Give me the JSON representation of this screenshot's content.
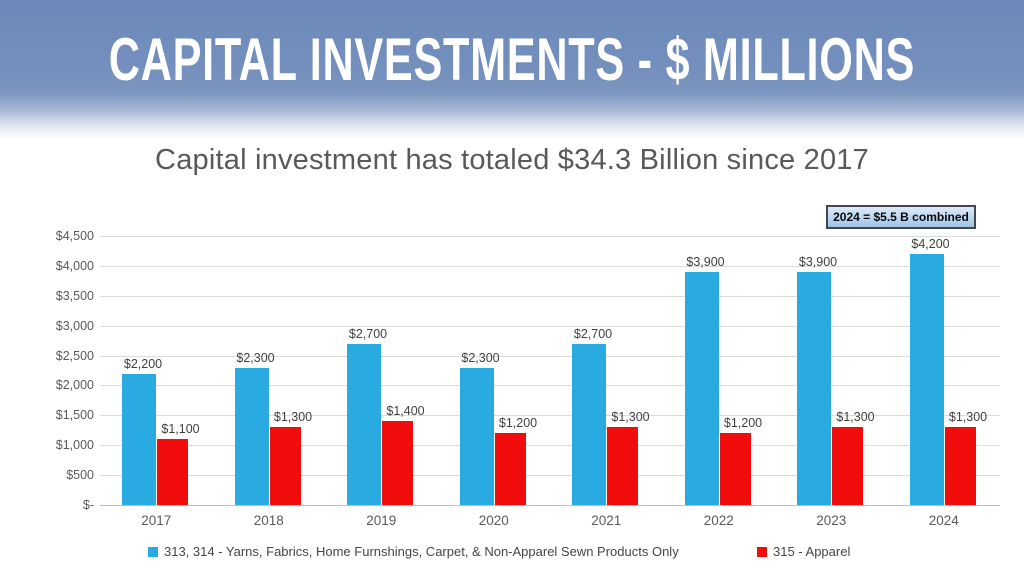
{
  "header": {
    "title": "CAPITAL INVESTMENTS - $ MILLIONS",
    "background_color": "#6E8CBC"
  },
  "subtitle": "Capital investment has totaled $34.3 Billion since 2017",
  "annotation": "2024 = $5.5 B combined",
  "chart_data": {
    "type": "bar",
    "title": "",
    "categories": [
      "2017",
      "2018",
      "2019",
      "2020",
      "2021",
      "2022",
      "2023",
      "2024"
    ],
    "series": [
      {
        "name": "313, 314 - Yarns, Fabrics, Home Furnshings, Carpet, & Non-Apparel Sewn Products Only",
        "color": "#29ABE2",
        "values": [
          2200,
          2300,
          2700,
          2300,
          2700,
          3900,
          3900,
          4200
        ]
      },
      {
        "name": "315 - Apparel",
        "color": "#F20D0D",
        "values": [
          1100,
          1300,
          1400,
          1200,
          1300,
          1200,
          1300,
          1300
        ]
      }
    ],
    "xlabel": "",
    "ylabel": "",
    "ylim": [
      0,
      4500
    ],
    "ytick_step": 500,
    "ytick_labels": [
      "$-",
      "$500",
      "$1,000",
      "$1,500",
      "$2,000",
      "$2,500",
      "$3,000",
      "$3,500",
      "$4,000",
      "$4,500"
    ],
    "value_label_prefix": "$",
    "grid": true,
    "legend_position": "bottom"
  }
}
